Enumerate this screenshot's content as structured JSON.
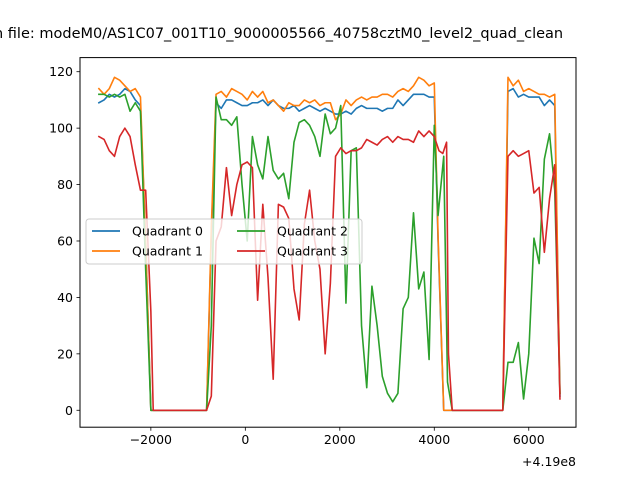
{
  "chart_data": {
    "type": "line",
    "title": "n file: modeM0/AS1C07_001T10_9000005566_40758cztM0_level2_quad_clean",
    "xlabel": "",
    "ylabel": "",
    "x_offset_label": "+4.19e8",
    "xlim": [
      -3500,
      7000
    ],
    "ylim": [
      -6,
      125
    ],
    "xticks": [
      -2000,
      0,
      2000,
      4000,
      6000
    ],
    "xtick_labels": [
      "−2000",
      "0",
      "2000",
      "4000",
      "6000"
    ],
    "yticks": [
      0,
      20,
      40,
      60,
      80,
      100,
      120
    ],
    "ytick_labels": [
      "0",
      "20",
      "40",
      "60",
      "80",
      "100",
      "120"
    ],
    "grid": false,
    "legend_placement": "center-left",
    "legend_columns": 2,
    "series": [
      {
        "name": "Quadrant 0",
        "color": "#1f77b4",
        "points": [
          [
            -3100,
            109
          ],
          [
            -2990,
            110
          ],
          [
            -2880,
            112
          ],
          [
            -2770,
            111
          ],
          [
            -2660,
            112
          ],
          [
            -2550,
            114
          ],
          [
            -2440,
            113
          ],
          [
            -2330,
            110
          ],
          [
            -2220,
            108
          ],
          [
            -2110,
            60
          ],
          [
            -2000,
            0
          ],
          [
            -1000,
            0
          ],
          [
            -820,
            0
          ],
          [
            -720,
            62
          ],
          [
            -620,
            109
          ],
          [
            -510,
            107
          ],
          [
            -400,
            110
          ],
          [
            -290,
            110
          ],
          [
            -180,
            109
          ],
          [
            -70,
            108
          ],
          [
            40,
            108
          ],
          [
            150,
            109
          ],
          [
            260,
            109
          ],
          [
            370,
            110
          ],
          [
            480,
            108
          ],
          [
            590,
            110
          ],
          [
            700,
            108
          ],
          [
            810,
            107
          ],
          [
            920,
            107
          ],
          [
            1030,
            108
          ],
          [
            1140,
            106
          ],
          [
            1250,
            107
          ],
          [
            1360,
            108
          ],
          [
            1470,
            107
          ],
          [
            1580,
            106
          ],
          [
            1690,
            107
          ],
          [
            1800,
            106
          ],
          [
            1910,
            105
          ],
          [
            2020,
            105
          ],
          [
            2130,
            106
          ],
          [
            2240,
            105
          ],
          [
            2350,
            107
          ],
          [
            2460,
            108
          ],
          [
            2570,
            107
          ],
          [
            2680,
            107
          ],
          [
            2790,
            107
          ],
          [
            2900,
            106
          ],
          [
            3010,
            107
          ],
          [
            3120,
            107
          ],
          [
            3230,
            110
          ],
          [
            3340,
            108
          ],
          [
            3450,
            110
          ],
          [
            3560,
            112
          ],
          [
            3670,
            112
          ],
          [
            3780,
            112
          ],
          [
            3890,
            111
          ],
          [
            4000,
            111
          ],
          [
            4080,
            60
          ],
          [
            4200,
            0
          ],
          [
            5450,
            0
          ],
          [
            5560,
            113
          ],
          [
            5670,
            114
          ],
          [
            5780,
            111
          ],
          [
            5890,
            112
          ],
          [
            6000,
            111
          ],
          [
            6110,
            111
          ],
          [
            6220,
            111
          ],
          [
            6330,
            108
          ],
          [
            6440,
            110
          ],
          [
            6550,
            108
          ],
          [
            6660,
            5
          ]
        ]
      },
      {
        "name": "Quadrant 1",
        "color": "#ff7f0e",
        "points": [
          [
            -3100,
            114
          ],
          [
            -2990,
            112
          ],
          [
            -2880,
            114
          ],
          [
            -2770,
            118
          ],
          [
            -2660,
            117
          ],
          [
            -2550,
            115
          ],
          [
            -2440,
            113
          ],
          [
            -2330,
            114
          ],
          [
            -2220,
            111
          ],
          [
            -2110,
            60
          ],
          [
            -2000,
            0
          ],
          [
            -1000,
            0
          ],
          [
            -820,
            0
          ],
          [
            -720,
            65
          ],
          [
            -620,
            112
          ],
          [
            -510,
            113
          ],
          [
            -400,
            111
          ],
          [
            -290,
            114
          ],
          [
            -180,
            113
          ],
          [
            -70,
            112
          ],
          [
            40,
            110
          ],
          [
            150,
            113
          ],
          [
            260,
            111
          ],
          [
            370,
            113
          ],
          [
            480,
            109
          ],
          [
            590,
            110
          ],
          [
            700,
            108
          ],
          [
            810,
            106
          ],
          [
            920,
            109
          ],
          [
            1030,
            108
          ],
          [
            1140,
            108
          ],
          [
            1250,
            110
          ],
          [
            1360,
            109
          ],
          [
            1470,
            110
          ],
          [
            1580,
            108
          ],
          [
            1690,
            109
          ],
          [
            1800,
            109
          ],
          [
            1910,
            103
          ],
          [
            2020,
            105
          ],
          [
            2130,
            110
          ],
          [
            2240,
            108
          ],
          [
            2350,
            110
          ],
          [
            2460,
            111
          ],
          [
            2570,
            110
          ],
          [
            2680,
            111
          ],
          [
            2790,
            111
          ],
          [
            2900,
            112
          ],
          [
            3010,
            112
          ],
          [
            3120,
            111
          ],
          [
            3230,
            113
          ],
          [
            3340,
            114
          ],
          [
            3450,
            113
          ],
          [
            3560,
            115
          ],
          [
            3670,
            118
          ],
          [
            3780,
            117
          ],
          [
            3890,
            115
          ],
          [
            4000,
            116
          ],
          [
            4080,
            62
          ],
          [
            4200,
            0
          ],
          [
            5450,
            0
          ],
          [
            5560,
            118
          ],
          [
            5670,
            115
          ],
          [
            5780,
            117
          ],
          [
            5890,
            113
          ],
          [
            6000,
            114
          ],
          [
            6110,
            113
          ],
          [
            6220,
            112
          ],
          [
            6330,
            112
          ],
          [
            6440,
            111
          ],
          [
            6550,
            112
          ],
          [
            6660,
            6
          ]
        ]
      },
      {
        "name": "Quadrant 2",
        "color": "#2ca02c",
        "points": [
          [
            -3100,
            112
          ],
          [
            -2990,
            112
          ],
          [
            -2880,
            111
          ],
          [
            -2770,
            112
          ],
          [
            -2660,
            111
          ],
          [
            -2550,
            112
          ],
          [
            -2440,
            106
          ],
          [
            -2330,
            109
          ],
          [
            -2220,
            106
          ],
          [
            -2110,
            50
          ],
          [
            -2000,
            0
          ],
          [
            -1000,
            0
          ],
          [
            -820,
            0
          ],
          [
            -720,
            30
          ],
          [
            -620,
            111
          ],
          [
            -510,
            103
          ],
          [
            -400,
            103
          ],
          [
            -290,
            101
          ],
          [
            -180,
            104
          ],
          [
            -70,
            80
          ],
          [
            40,
            60
          ],
          [
            150,
            97
          ],
          [
            260,
            87
          ],
          [
            370,
            82
          ],
          [
            480,
            97
          ],
          [
            590,
            85
          ],
          [
            700,
            82
          ],
          [
            810,
            84
          ],
          [
            920,
            75
          ],
          [
            1030,
            95
          ],
          [
            1140,
            102
          ],
          [
            1250,
            103
          ],
          [
            1360,
            101
          ],
          [
            1470,
            97
          ],
          [
            1580,
            90
          ],
          [
            1690,
            105
          ],
          [
            1800,
            98
          ],
          [
            1910,
            100
          ],
          [
            2020,
            108
          ],
          [
            2130,
            38
          ],
          [
            2240,
            92
          ],
          [
            2350,
            93
          ],
          [
            2460,
            30
          ],
          [
            2570,
            8
          ],
          [
            2680,
            44
          ],
          [
            2790,
            30
          ],
          [
            2900,
            12
          ],
          [
            3010,
            6
          ],
          [
            3120,
            3
          ],
          [
            3230,
            6
          ],
          [
            3340,
            36
          ],
          [
            3450,
            40
          ],
          [
            3560,
            70
          ],
          [
            3670,
            43
          ],
          [
            3780,
            49
          ],
          [
            3890,
            18
          ],
          [
            4000,
            101
          ],
          [
            4080,
            69
          ],
          [
            4200,
            90
          ],
          [
            4280,
            10
          ],
          [
            4380,
            0
          ],
          [
            5450,
            0
          ],
          [
            5560,
            17
          ],
          [
            5670,
            17
          ],
          [
            5780,
            24
          ],
          [
            5890,
            4
          ],
          [
            6000,
            20
          ],
          [
            6110,
            61
          ],
          [
            6220,
            52
          ],
          [
            6330,
            89
          ],
          [
            6440,
            98
          ],
          [
            6550,
            78
          ],
          [
            6660,
            6
          ]
        ]
      },
      {
        "name": "Quadrant 3",
        "color": "#d62728",
        "points": [
          [
            -3100,
            97
          ],
          [
            -2990,
            96
          ],
          [
            -2880,
            92
          ],
          [
            -2770,
            90
          ],
          [
            -2660,
            97
          ],
          [
            -2550,
            100
          ],
          [
            -2440,
            97
          ],
          [
            -2330,
            87
          ],
          [
            -2220,
            78
          ],
          [
            -2110,
            78
          ],
          [
            -2000,
            35
          ],
          [
            -1950,
            0
          ],
          [
            -1000,
            0
          ],
          [
            -820,
            0
          ],
          [
            -720,
            5
          ],
          [
            -620,
            60
          ],
          [
            -510,
            65
          ],
          [
            -400,
            86
          ],
          [
            -290,
            69
          ],
          [
            -180,
            80
          ],
          [
            -70,
            87
          ],
          [
            40,
            88
          ],
          [
            150,
            86
          ],
          [
            260,
            39
          ],
          [
            370,
            73
          ],
          [
            480,
            47
          ],
          [
            590,
            11
          ],
          [
            700,
            73
          ],
          [
            810,
            72
          ],
          [
            920,
            68
          ],
          [
            1030,
            43
          ],
          [
            1140,
            32
          ],
          [
            1250,
            66
          ],
          [
            1360,
            78
          ],
          [
            1470,
            60
          ],
          [
            1580,
            50
          ],
          [
            1690,
            20
          ],
          [
            1800,
            45
          ],
          [
            1910,
            90
          ],
          [
            2020,
            93
          ],
          [
            2130,
            91
          ],
          [
            2240,
            92
          ],
          [
            2350,
            92
          ],
          [
            2460,
            93
          ],
          [
            2570,
            96
          ],
          [
            2680,
            95
          ],
          [
            2790,
            94
          ],
          [
            2900,
            96
          ],
          [
            3010,
            97
          ],
          [
            3120,
            95
          ],
          [
            3230,
            97
          ],
          [
            3340,
            96
          ],
          [
            3450,
            96
          ],
          [
            3560,
            95
          ],
          [
            3670,
            99
          ],
          [
            3780,
            97
          ],
          [
            3890,
            99
          ],
          [
            4000,
            97
          ],
          [
            4100,
            92
          ],
          [
            4180,
            91
          ],
          [
            4260,
            95
          ],
          [
            4300,
            20
          ],
          [
            4380,
            0
          ],
          [
            5450,
            0
          ],
          [
            5560,
            90
          ],
          [
            5670,
            92
          ],
          [
            5780,
            90
          ],
          [
            5890,
            91
          ],
          [
            6000,
            92
          ],
          [
            6110,
            77
          ],
          [
            6220,
            79
          ],
          [
            6330,
            56
          ],
          [
            6440,
            75
          ],
          [
            6550,
            87
          ],
          [
            6660,
            4
          ]
        ]
      }
    ]
  }
}
